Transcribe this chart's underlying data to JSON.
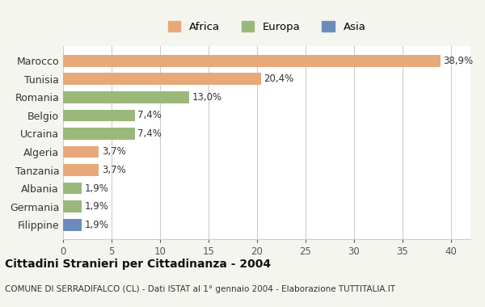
{
  "categories": [
    "Filippine",
    "Germania",
    "Albania",
    "Tanzania",
    "Algeria",
    "Ucraina",
    "Belgio",
    "Romania",
    "Tunisia",
    "Marocco"
  ],
  "values": [
    1.9,
    1.9,
    1.9,
    3.7,
    3.7,
    7.4,
    7.4,
    13.0,
    20.4,
    38.9
  ],
  "labels": [
    "1,9%",
    "1,9%",
    "1,9%",
    "3,7%",
    "3,7%",
    "7,4%",
    "7,4%",
    "13,0%",
    "20,4%",
    "38,9%"
  ],
  "colors": [
    "#6b8cba",
    "#9ab87a",
    "#9ab87a",
    "#e8a97a",
    "#e8a97a",
    "#9ab87a",
    "#9ab87a",
    "#9ab87a",
    "#e8a97a",
    "#e8a97a"
  ],
  "legend_labels": [
    "Africa",
    "Europa",
    "Asia"
  ],
  "legend_colors": [
    "#e8a97a",
    "#9ab87a",
    "#6b8cba"
  ],
  "title": "Cittadini Stranieri per Cittadinanza - 2004",
  "subtitle": "COMUNE DI SERRADIFALCO (CL) - Dati ISTAT al 1° gennaio 2004 - Elaborazione TUTTITALIA.IT",
  "xlim": [
    0,
    42
  ],
  "xticks": [
    0,
    5,
    10,
    15,
    20,
    25,
    30,
    35,
    40
  ],
  "background_color": "#f5f5f0",
  "bar_background": "#ffffff",
  "grid_color": "#cccccc"
}
